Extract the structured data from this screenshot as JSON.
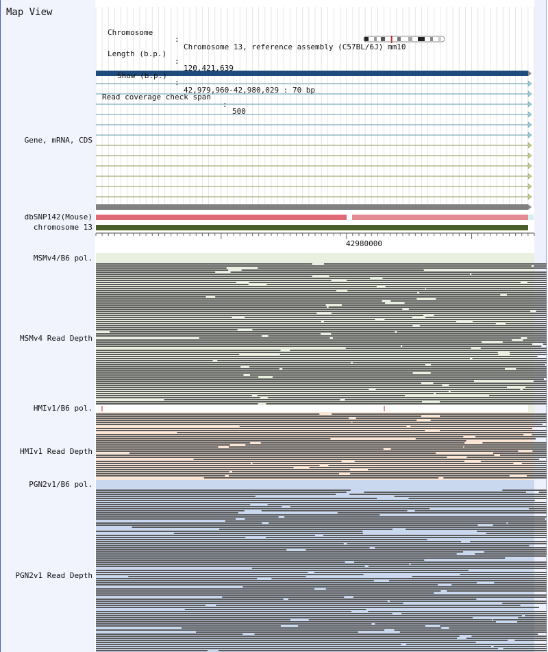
{
  "panel_title": "Map View",
  "info": {
    "chromosome_key": "Chromosome",
    "chromosome_value": "Chromosome 13, reference assembly (C57BL/6J) mm10",
    "length_key": "Length (b.p.)",
    "length_value": "120,421,639",
    "show_key": "Show (b.p.)",
    "show_value": "42,979,960-42,980,029 : 70 bp",
    "coverage_key": "Read coverage check span",
    "coverage_value": "500"
  },
  "tracks": {
    "gene": "Gene, mRNA, CDS",
    "snp": "dbSNP142(Mouse)",
    "chromosome": "chromosome 13",
    "msm_pol": "MSMv4/B6 pol.",
    "msm_depth": "MSMv4 Read Depth",
    "hmi_pol": "HMIv1/B6 pol.",
    "hmi_depth": "HMIv1 Read Depth",
    "pgn_pol": "PGN2v1/B6 pol.",
    "pgn_depth": "PGN2v1 Read Depth"
  },
  "ruler": {
    "position_label": "42980000"
  },
  "colors": {
    "gene_main": "#1f4a7c",
    "mrna_teal": "#5a9aa8",
    "mrna_olive": "#8a9a50",
    "cds_gray": "#808080",
    "snp_red": "#e06a78",
    "chromosome_green": "#4a5e2a",
    "msm_bg": "#e9f0e0",
    "hmi_bg": "#fbe6d6",
    "pgn_bg": "#c9d8ee",
    "read": "#5a5a5a",
    "label_column_bg": "#f1f3fd",
    "left_border": "#4b5cc4"
  }
}
